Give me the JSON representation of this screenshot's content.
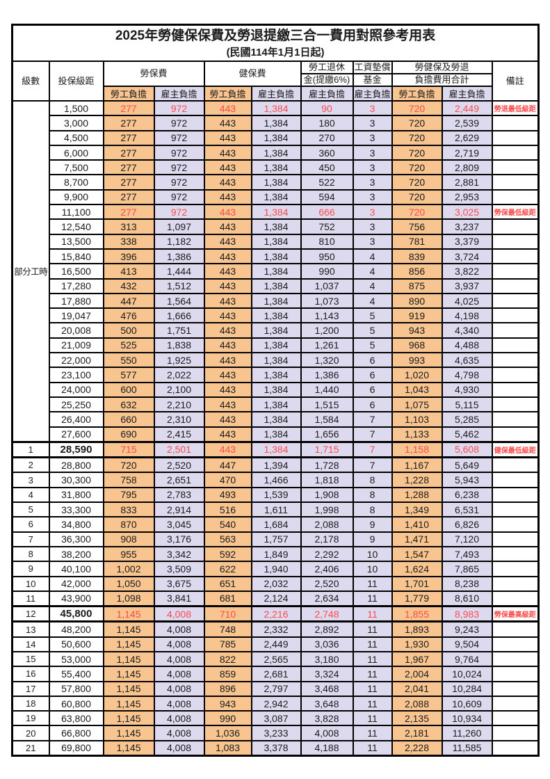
{
  "title": "2025年勞健保保費及勞退提繳三合一費用對照參考用表",
  "subtitle": "(民國114年1月1日起)",
  "columns": {
    "level": "級數",
    "bracket": "投保級距",
    "labor_insurance": "勞保費",
    "health_insurance": "健保費",
    "pension_line1": "勞工退休",
    "pension_line2": "金(提繳6%)",
    "fund_line1": "工資墊償",
    "fund_line2": "基金",
    "total_line1": "勞健保及勞退",
    "total_line2": "負擔費用合計",
    "remark": "備註",
    "employee_label": "勞工負擔",
    "employer_label": "雇主負擔"
  },
  "part_time_label": "部分工時",
  "part_time_rowspan": 23,
  "colors": {
    "employee_bg": "#F8C48F",
    "employer_bg": "#DDDAF0",
    "highlight_red": "#FF4A4A",
    "border": "#000000"
  },
  "rows": [
    {
      "level": "",
      "bracket": "1,500",
      "values": [
        "277",
        "972",
        "443",
        "1,384",
        "90",
        "3",
        "720",
        "2,449"
      ],
      "remark": "勞退最低級距",
      "red": true
    },
    {
      "level": "",
      "bracket": "3,000",
      "values": [
        "277",
        "972",
        "443",
        "1,384",
        "180",
        "3",
        "720",
        "2,539"
      ]
    },
    {
      "level": "",
      "bracket": "4,500",
      "values": [
        "277",
        "972",
        "443",
        "1,384",
        "270",
        "3",
        "720",
        "2,629"
      ]
    },
    {
      "level": "",
      "bracket": "6,000",
      "values": [
        "277",
        "972",
        "443",
        "1,384",
        "360",
        "3",
        "720",
        "2,719"
      ]
    },
    {
      "level": "",
      "bracket": "7,500",
      "values": [
        "277",
        "972",
        "443",
        "1,384",
        "450",
        "3",
        "720",
        "2,809"
      ]
    },
    {
      "level": "",
      "bracket": "8,700",
      "values": [
        "277",
        "972",
        "443",
        "1,384",
        "522",
        "3",
        "720",
        "2,881"
      ]
    },
    {
      "level": "",
      "bracket": "9,900",
      "values": [
        "277",
        "972",
        "443",
        "1,384",
        "594",
        "3",
        "720",
        "2,953"
      ]
    },
    {
      "level": "",
      "bracket": "11,100",
      "values": [
        "277",
        "972",
        "443",
        "1,384",
        "666",
        "3",
        "720",
        "3,025"
      ],
      "remark": "勞保最低級距",
      "red": true
    },
    {
      "level": "",
      "bracket": "12,540",
      "values": [
        "313",
        "1,097",
        "443",
        "1,384",
        "752",
        "3",
        "756",
        "3,237"
      ]
    },
    {
      "level": "",
      "bracket": "13,500",
      "values": [
        "338",
        "1,182",
        "443",
        "1,384",
        "810",
        "3",
        "781",
        "3,379"
      ]
    },
    {
      "level": "",
      "bracket": "15,840",
      "values": [
        "396",
        "1,386",
        "443",
        "1,384",
        "950",
        "4",
        "839",
        "3,724"
      ]
    },
    {
      "level": "",
      "bracket": "16,500",
      "values": [
        "413",
        "1,444",
        "443",
        "1,384",
        "990",
        "4",
        "856",
        "3,822"
      ]
    },
    {
      "level": "",
      "bracket": "17,280",
      "values": [
        "432",
        "1,512",
        "443",
        "1,384",
        "1,037",
        "4",
        "875",
        "3,937"
      ]
    },
    {
      "level": "",
      "bracket": "17,880",
      "values": [
        "447",
        "1,564",
        "443",
        "1,384",
        "1,073",
        "4",
        "890",
        "4,025"
      ]
    },
    {
      "level": "",
      "bracket": "19,047",
      "values": [
        "476",
        "1,666",
        "443",
        "1,384",
        "1,143",
        "5",
        "919",
        "4,198"
      ]
    },
    {
      "level": "",
      "bracket": "20,008",
      "values": [
        "500",
        "1,751",
        "443",
        "1,384",
        "1,200",
        "5",
        "943",
        "4,340"
      ]
    },
    {
      "level": "",
      "bracket": "21,009",
      "values": [
        "525",
        "1,838",
        "443",
        "1,384",
        "1,261",
        "5",
        "968",
        "4,488"
      ]
    },
    {
      "level": "",
      "bracket": "22,000",
      "values": [
        "550",
        "1,925",
        "443",
        "1,384",
        "1,320",
        "6",
        "993",
        "4,635"
      ]
    },
    {
      "level": "",
      "bracket": "23,100",
      "values": [
        "577",
        "2,022",
        "443",
        "1,384",
        "1,386",
        "6",
        "1,020",
        "4,798"
      ]
    },
    {
      "level": "",
      "bracket": "24,000",
      "values": [
        "600",
        "2,100",
        "443",
        "1,384",
        "1,440",
        "6",
        "1,043",
        "4,930"
      ]
    },
    {
      "level": "",
      "bracket": "25,250",
      "values": [
        "632",
        "2,210",
        "443",
        "1,384",
        "1,515",
        "6",
        "1,075",
        "5,115"
      ]
    },
    {
      "level": "",
      "bracket": "26,400",
      "values": [
        "660",
        "2,310",
        "443",
        "1,384",
        "1,584",
        "7",
        "1,103",
        "5,285"
      ]
    },
    {
      "level": "",
      "bracket": "27,600",
      "values": [
        "690",
        "2,415",
        "443",
        "1,384",
        "1,656",
        "7",
        "1,133",
        "5,462"
      ]
    },
    {
      "level": "1",
      "bracket": "28,590",
      "values": [
        "715",
        "2,501",
        "443",
        "1,384",
        "1,715",
        "7",
        "1,158",
        "5,608"
      ],
      "remark": "健保最低級距",
      "red": true,
      "bold": true,
      "thick": true
    },
    {
      "level": "2",
      "bracket": "28,800",
      "values": [
        "720",
        "2,520",
        "447",
        "1,394",
        "1,728",
        "7",
        "1,167",
        "5,649"
      ]
    },
    {
      "level": "3",
      "bracket": "30,300",
      "values": [
        "758",
        "2,651",
        "470",
        "1,466",
        "1,818",
        "8",
        "1,228",
        "5,943"
      ]
    },
    {
      "level": "4",
      "bracket": "31,800",
      "values": [
        "795",
        "2,783",
        "493",
        "1,539",
        "1,908",
        "8",
        "1,288",
        "6,238"
      ]
    },
    {
      "level": "5",
      "bracket": "33,300",
      "values": [
        "833",
        "2,914",
        "516",
        "1,611",
        "1,998",
        "8",
        "1,349",
        "6,531"
      ]
    },
    {
      "level": "6",
      "bracket": "34,800",
      "values": [
        "870",
        "3,045",
        "540",
        "1,684",
        "2,088",
        "9",
        "1,410",
        "6,826"
      ]
    },
    {
      "level": "7",
      "bracket": "36,300",
      "values": [
        "908",
        "3,176",
        "563",
        "1,757",
        "2,178",
        "9",
        "1,471",
        "7,120"
      ]
    },
    {
      "level": "8",
      "bracket": "38,200",
      "values": [
        "955",
        "3,342",
        "592",
        "1,849",
        "2,292",
        "10",
        "1,547",
        "7,493"
      ]
    },
    {
      "level": "9",
      "bracket": "40,100",
      "values": [
        "1,002",
        "3,509",
        "622",
        "1,940",
        "2,406",
        "10",
        "1,624",
        "7,865"
      ]
    },
    {
      "level": "10",
      "bracket": "42,000",
      "values": [
        "1,050",
        "3,675",
        "651",
        "2,032",
        "2,520",
        "11",
        "1,701",
        "8,238"
      ]
    },
    {
      "level": "11",
      "bracket": "43,900",
      "values": [
        "1,098",
        "3,841",
        "681",
        "2,124",
        "2,634",
        "11",
        "1,779",
        "8,610"
      ]
    },
    {
      "level": "12",
      "bracket": "45,800",
      "values": [
        "1,145",
        "4,008",
        "710",
        "2,216",
        "2,748",
        "11",
        "1,855",
        "8,983"
      ],
      "remark": "勞保最高級距",
      "red": true,
      "bold": true,
      "thick": true
    },
    {
      "level": "13",
      "bracket": "48,200",
      "values": [
        "1,145",
        "4,008",
        "748",
        "2,332",
        "2,892",
        "11",
        "1,893",
        "9,243"
      ]
    },
    {
      "level": "14",
      "bracket": "50,600",
      "values": [
        "1,145",
        "4,008",
        "785",
        "2,449",
        "3,036",
        "11",
        "1,930",
        "9,504"
      ]
    },
    {
      "level": "15",
      "bracket": "53,000",
      "values": [
        "1,145",
        "4,008",
        "822",
        "2,565",
        "3,180",
        "11",
        "1,967",
        "9,764"
      ]
    },
    {
      "level": "16",
      "bracket": "55,400",
      "values": [
        "1,145",
        "4,008",
        "859",
        "2,681",
        "3,324",
        "11",
        "2,004",
        "10,024"
      ]
    },
    {
      "level": "17",
      "bracket": "57,800",
      "values": [
        "1,145",
        "4,008",
        "896",
        "2,797",
        "3,468",
        "11",
        "2,041",
        "10,284"
      ]
    },
    {
      "level": "18",
      "bracket": "60,800",
      "values": [
        "1,145",
        "4,008",
        "943",
        "2,942",
        "3,648",
        "11",
        "2,088",
        "10,609"
      ]
    },
    {
      "level": "19",
      "bracket": "63,800",
      "values": [
        "1,145",
        "4,008",
        "990",
        "3,087",
        "3,828",
        "11",
        "2,135",
        "10,934"
      ]
    },
    {
      "level": "20",
      "bracket": "66,800",
      "values": [
        "1,145",
        "4,008",
        "1,036",
        "3,233",
        "4,008",
        "11",
        "2,181",
        "11,260"
      ]
    },
    {
      "level": "21",
      "bracket": "69,800",
      "values": [
        "1,145",
        "4,008",
        "1,083",
        "3,378",
        "4,188",
        "11",
        "2,228",
        "11,585"
      ]
    }
  ]
}
